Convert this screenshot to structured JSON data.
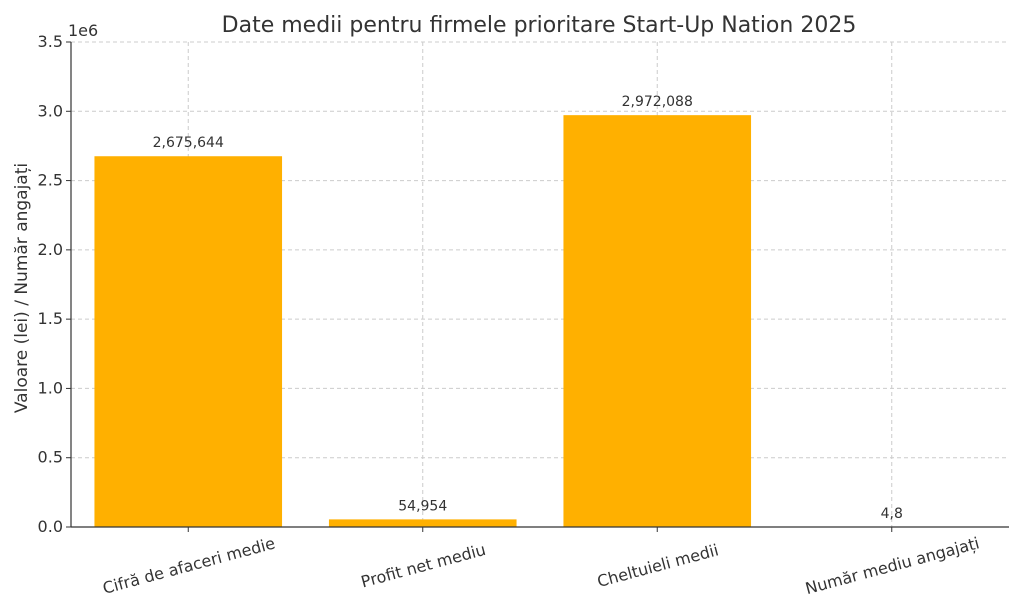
{
  "chart_data": {
    "type": "bar",
    "title": "Date medii pentru firmele prioritare Start-Up Nation 2025",
    "xlabel": "",
    "ylabel": "Valoare (lei) / Număr angajați",
    "y_offset_label": "1e6",
    "categories": [
      "Cifră de afaceri medie",
      "Profit net mediu",
      "Cheltuieli medii",
      "Număr mediu angajați"
    ],
    "values": [
      2675644,
      54954,
      2972088,
      4.8
    ],
    "data_labels": [
      "2,675,644",
      "54,954",
      "2,972,088",
      "4,8"
    ],
    "ylim": [
      0,
      3500000
    ],
    "yticks": [
      0,
      500000,
      1000000,
      1500000,
      2000000,
      2500000,
      3000000,
      3500000
    ],
    "ytick_labels": [
      "0.0",
      "0.5",
      "1.0",
      "1.5",
      "2.0",
      "2.5",
      "3.0",
      "3.5"
    ],
    "grid": true,
    "bar_color": "#FFB000"
  }
}
